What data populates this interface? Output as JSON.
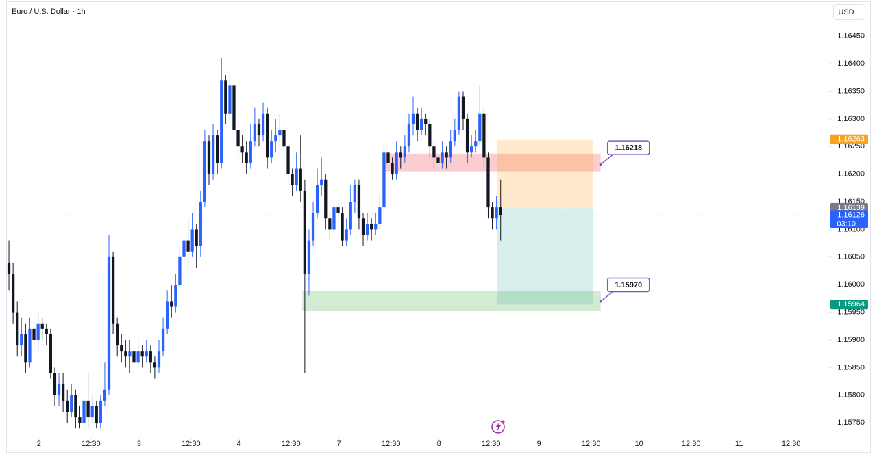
{
  "chart_data": {
    "type": "candlestick",
    "title": "Euro / U.S. Dollar · 1h",
    "currency": "USD",
    "up_color": "#2962ff",
    "down_color": "#131722",
    "xlim": [
      0,
      197.3
    ],
    "ylim": [
      1.15723,
      1.16509
    ],
    "open": [
      1.1604,
      1.1602,
      1.1595,
      1.1589,
      1.1591,
      1.1586,
      1.1592,
      1.159,
      1.1593,
      1.1592,
      1.1591,
      1.1584,
      1.158,
      1.1582,
      1.1579,
      1.1577,
      1.158,
      1.1576,
      1.1575,
      1.1579,
      1.1576,
      1.1578,
      1.1575,
      1.1579,
      1.1581,
      1.1605,
      1.1593,
      1.1589,
      1.1588,
      1.1587,
      1.1588,
      1.1586,
      1.1588,
      1.1587,
      1.1588,
      1.1586,
      1.1585,
      1.1588,
      1.1592,
      1.1597,
      1.1596,
      1.16,
      1.1605,
      1.1608,
      1.1606,
      1.161,
      1.1607,
      1.1615,
      1.1626,
      1.162,
      1.1627,
      1.1622,
      1.1637,
      1.1631,
      1.1636,
      1.1628,
      1.1625,
      1.1624,
      1.1622,
      1.1626,
      1.1629,
      1.1627,
      1.1631,
      1.1623,
      1.1626,
      1.1627,
      1.1628,
      1.1625,
      1.162,
      1.1618,
      1.1621,
      1.1617,
      1.1602,
      1.1608,
      1.1613,
      1.1618,
      1.1619,
      1.1612,
      1.161,
      1.1614,
      1.1613,
      1.1608,
      1.161,
      1.1615,
      1.1618,
      1.1612,
      1.1609,
      1.1611,
      1.161,
      1.1611,
      1.1614,
      1.1624,
      1.1622,
      1.162,
      1.1624,
      1.1623,
      1.1625,
      1.1629,
      1.1631,
      1.1628,
      1.163,
      1.1629,
      1.1625,
      1.1623,
      1.1622,
      1.1624,
      1.1623,
      1.1626,
      1.1628,
      1.1634,
      1.163,
      1.1624,
      1.1625,
      1.1626,
      1.1631,
      1.1623,
      1.1614,
      1.1612,
      1.1614
    ],
    "high": [
      1.1608,
      1.1604,
      1.1597,
      1.1594,
      1.1593,
      1.1594,
      1.1594,
      1.1595,
      1.1594,
      1.1593,
      1.1592,
      1.1585,
      1.1584,
      1.1584,
      1.1581,
      1.1582,
      1.1581,
      1.1578,
      1.1581,
      1.1584,
      1.158,
      1.1579,
      1.158,
      1.1586,
      1.1609,
      1.1606,
      1.1594,
      1.1591,
      1.159,
      1.159,
      1.1589,
      1.159,
      1.1589,
      1.159,
      1.1589,
      1.1587,
      1.159,
      1.1594,
      1.1599,
      1.16,
      1.1602,
      1.1607,
      1.161,
      1.1612,
      1.1613,
      1.1611,
      1.1617,
      1.1628,
      1.1627,
      1.1629,
      1.1628,
      1.1641,
      1.1638,
      1.1638,
      1.1637,
      1.163,
      1.1627,
      1.1626,
      1.1629,
      1.1632,
      1.163,
      1.1633,
      1.1632,
      1.1628,
      1.163,
      1.1631,
      1.1629,
      1.1626,
      1.1621,
      1.1624,
      1.1627,
      1.1619,
      1.161,
      1.1615,
      1.1621,
      1.1623,
      1.162,
      1.1613,
      1.1616,
      1.1616,
      1.1614,
      1.1612,
      1.1618,
      1.1619,
      1.1619,
      1.1613,
      1.1613,
      1.1612,
      1.1613,
      1.1616,
      1.1625,
      1.1636,
      1.1623,
      1.1626,
      1.1625,
      1.1627,
      1.1631,
      1.1634,
      1.1632,
      1.1632,
      1.1631,
      1.163,
      1.1626,
      1.1625,
      1.1626,
      1.1625,
      1.1628,
      1.163,
      1.1635,
      1.1635,
      1.1631,
      1.1627,
      1.1628,
      1.1636,
      1.1632,
      1.1624,
      1.1615,
      1.1616,
      1.1619
    ],
    "low": [
      1.1599,
      1.1593,
      1.1587,
      1.1587,
      1.1584,
      1.1585,
      1.1588,
      1.1588,
      1.159,
      1.1589,
      1.1583,
      1.1578,
      1.1578,
      1.1577,
      1.1575,
      1.1576,
      1.1574,
      1.1574,
      1.1574,
      1.1574,
      1.1575,
      1.1574,
      1.1574,
      1.1578,
      1.158,
      1.1591,
      1.1587,
      1.1586,
      1.1585,
      1.1584,
      1.1584,
      1.1585,
      1.1585,
      1.1586,
      1.1584,
      1.1583,
      1.1584,
      1.1587,
      1.1591,
      1.1594,
      1.1595,
      1.1599,
      1.1603,
      1.1604,
      1.1605,
      1.1603,
      1.1605,
      1.1614,
      1.1618,
      1.1619,
      1.162,
      1.1621,
      1.1629,
      1.163,
      1.1626,
      1.1623,
      1.1622,
      1.162,
      1.1621,
      1.1625,
      1.1625,
      1.1626,
      1.1621,
      1.1622,
      1.1624,
      1.1625,
      1.1623,
      1.1618,
      1.1616,
      1.1617,
      1.1615,
      1.1584,
      1.1598,
      1.1607,
      1.1612,
      1.1616,
      1.161,
      1.1608,
      1.1609,
      1.1611,
      1.1607,
      1.1607,
      1.1609,
      1.1613,
      1.161,
      1.1607,
      1.1608,
      1.1608,
      1.1609,
      1.161,
      1.1613,
      1.162,
      1.1619,
      1.1619,
      1.1621,
      1.1622,
      1.1624,
      1.1627,
      1.1626,
      1.1627,
      1.1627,
      1.1623,
      1.1621,
      1.162,
      1.1621,
      1.1621,
      1.1622,
      1.1625,
      1.1627,
      1.1628,
      1.1622,
      1.1623,
      1.1624,
      1.1625,
      1.1621,
      1.1612,
      1.161,
      1.161,
      1.1608
    ],
    "close": [
      1.1602,
      1.1595,
      1.1589,
      1.1591,
      1.1586,
      1.1592,
      1.159,
      1.1593,
      1.1592,
      1.1591,
      1.1584,
      1.158,
      1.1582,
      1.1579,
      1.1577,
      1.158,
      1.1576,
      1.1575,
      1.1579,
      1.1576,
      1.1578,
      1.1575,
      1.1579,
      1.1581,
      1.1605,
      1.1593,
      1.1589,
      1.1588,
      1.1587,
      1.1588,
      1.1586,
      1.1588,
      1.1587,
      1.1588,
      1.1586,
      1.1585,
      1.1588,
      1.1592,
      1.1597,
      1.1596,
      1.16,
      1.1605,
      1.1608,
      1.1606,
      1.161,
      1.1607,
      1.1615,
      1.1626,
      1.162,
      1.1627,
      1.1622,
      1.1637,
      1.1631,
      1.1636,
      1.1628,
      1.1625,
      1.1624,
      1.1622,
      1.1626,
      1.1629,
      1.1627,
      1.1631,
      1.1623,
      1.1626,
      1.1627,
      1.1628,
      1.1625,
      1.162,
      1.1618,
      1.1621,
      1.1617,
      1.1602,
      1.1608,
      1.1613,
      1.1618,
      1.1619,
      1.1612,
      1.161,
      1.1614,
      1.1613,
      1.1608,
      1.161,
      1.1615,
      1.1618,
      1.1612,
      1.1609,
      1.1611,
      1.161,
      1.1611,
      1.1614,
      1.1624,
      1.1622,
      1.162,
      1.1624,
      1.1623,
      1.1625,
      1.1629,
      1.1631,
      1.1628,
      1.163,
      1.1629,
      1.1625,
      1.1623,
      1.1622,
      1.1624,
      1.1623,
      1.1626,
      1.1628,
      1.1634,
      1.163,
      1.1624,
      1.1625,
      1.1626,
      1.1631,
      1.1623,
      1.1614,
      1.1612,
      1.1614,
      1.16126
    ],
    "yticks": [
      {
        "value": 1.1645,
        "label": "1.16450"
      },
      {
        "value": 1.164,
        "label": "1.16400"
      },
      {
        "value": 1.1635,
        "label": "1.16350"
      },
      {
        "value": 1.163,
        "label": "1.16300"
      },
      {
        "value": 1.1625,
        "label": "1.16250"
      },
      {
        "value": 1.162,
        "label": "1.16200"
      },
      {
        "value": 1.1615,
        "label": "1.16150"
      },
      {
        "value": 1.161,
        "label": "1.16100"
      },
      {
        "value": 1.1605,
        "label": "1.16050"
      },
      {
        "value": 1.16,
        "label": "1.16000"
      },
      {
        "value": 1.1595,
        "label": "1.15950"
      },
      {
        "value": 1.159,
        "label": "1.15900"
      },
      {
        "value": 1.1585,
        "label": "1.15850"
      },
      {
        "value": 1.158,
        "label": "1.15800"
      },
      {
        "value": 1.1575,
        "label": "1.15750"
      }
    ],
    "xticks": [
      {
        "value": 7.7,
        "label": "2"
      },
      {
        "value": 20.2,
        "label": "12:30"
      },
      {
        "value": 31.7,
        "label": "3"
      },
      {
        "value": 44.2,
        "label": "12:30"
      },
      {
        "value": 55.7,
        "label": "4"
      },
      {
        "value": 68.2,
        "label": "12:30"
      },
      {
        "value": 79.7,
        "label": "7"
      },
      {
        "value": 92.2,
        "label": "12:30"
      },
      {
        "value": 103.7,
        "label": "8"
      },
      {
        "value": 116.2,
        "label": "12:30"
      },
      {
        "value": 127.7,
        "label": "9"
      },
      {
        "value": 140.2,
        "label": "12:30"
      },
      {
        "value": 151.7,
        "label": "10"
      },
      {
        "value": 164.2,
        "label": "12:30"
      },
      {
        "value": 175.7,
        "label": "11"
      },
      {
        "value": 188.2,
        "label": "12:30"
      }
    ],
    "zones": [
      {
        "from": 90.7,
        "to": 142.5,
        "low": 1.16205,
        "high": 1.16237,
        "color": "rgba(242,54,69,0.25)"
      },
      {
        "from": 70.9,
        "to": 142.5,
        "low": 1.15952,
        "high": 1.15989,
        "color": "rgba(76,175,80,0.25)"
      },
      {
        "from": 117.7,
        "to": 140.7,
        "low": 1.16139,
        "high": 1.16263,
        "color": "rgba(255,152,0,0.2)"
      },
      {
        "from": 117.7,
        "to": 140.7,
        "low": 1.15964,
        "high": 1.16139,
        "color": "rgba(0,150,136,0.15)"
      }
    ],
    "callouts": [
      {
        "x": 142.5,
        "value": 1.16218,
        "label": "1.16218"
      },
      {
        "x": 142.5,
        "value": 1.1597,
        "label": "1.15970"
      }
    ],
    "current_price": {
      "value": 1.16126,
      "label": "1.16126",
      "countdown": "03:10",
      "color": "#2962ff"
    },
    "price_markers": [
      {
        "value": 1.16263,
        "label": "1.16263",
        "color": "#f7a21b"
      },
      {
        "value": 1.16139,
        "label": "1.16139",
        "color": "#787b86"
      },
      {
        "value": 1.15964,
        "label": "1.15964",
        "color": "#089981"
      }
    ]
  }
}
